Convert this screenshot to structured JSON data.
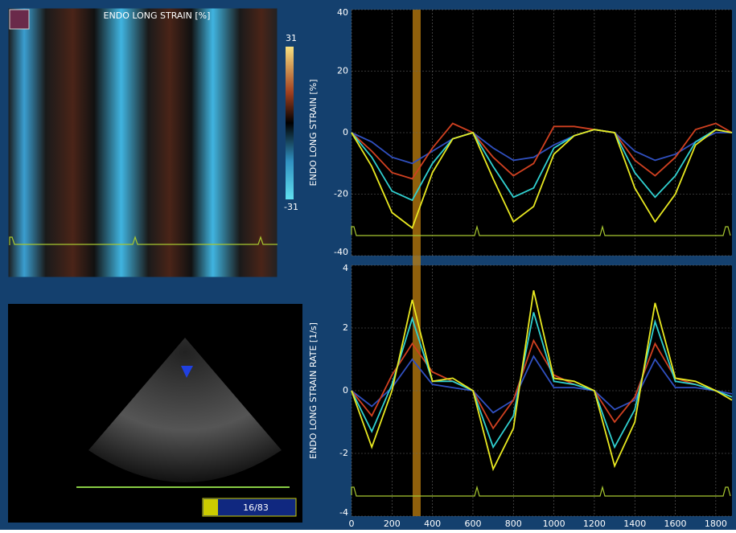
{
  "chart_data": [
    {
      "type": "heatmap",
      "title": "ENDO LONG STRAIN [%]",
      "clim": [
        -31,
        31
      ],
      "colorbar_ticks": [
        31,
        -31
      ]
    },
    {
      "type": "line",
      "ylabel": "ENDO LONG STRAIN [%]",
      "x": [
        0,
        100,
        200,
        300,
        400,
        500,
        600,
        700,
        800,
        900,
        1000,
        1100,
        1200,
        1300,
        1400,
        1500,
        1600,
        1700,
        1800,
        1880
      ],
      "xlim": [
        0,
        1880
      ],
      "ylim": [
        -40,
        40
      ],
      "yticks": [
        -40,
        -20,
        0,
        20,
        40
      ],
      "grid": true,
      "series": [
        {
          "color": "#3050c0",
          "values": [
            0,
            -3,
            -8,
            -10,
            -6,
            -2,
            0,
            -5,
            -9,
            -8,
            -4,
            -1,
            1,
            0,
            -6,
            -9,
            -7,
            -3,
            0,
            0
          ]
        },
        {
          "color": "#d04020",
          "values": [
            0,
            -6,
            -13,
            -15,
            -5,
            3,
            0,
            -8,
            -14,
            -10,
            2,
            2,
            1,
            0,
            -9,
            -14,
            -8,
            1,
            3,
            0
          ]
        },
        {
          "color": "#30d0d0",
          "values": [
            0,
            -8,
            -19,
            -22,
            -10,
            -2,
            0,
            -11,
            -21,
            -18,
            -5,
            -1,
            1,
            0,
            -13,
            -21,
            -14,
            -3,
            1,
            0
          ]
        },
        {
          "color": "#e8e820",
          "values": [
            0,
            -11,
            -26,
            -31,
            -13,
            -2,
            0,
            -15,
            -29,
            -24,
            -7,
            -1,
            1,
            0,
            -18,
            -29,
            -20,
            -4,
            1,
            0
          ]
        }
      ]
    },
    {
      "type": "line",
      "ylabel": "ENDO LONG STRAIN RATE [1/s]",
      "x": [
        0,
        100,
        200,
        300,
        400,
        500,
        600,
        700,
        800,
        900,
        1000,
        1100,
        1200,
        1300,
        1400,
        1500,
        1600,
        1700,
        1800,
        1880
      ],
      "xlim": [
        0,
        1880
      ],
      "xticks": [
        0,
        200,
        400,
        600,
        800,
        1000,
        1200,
        1400,
        1600,
        1800
      ],
      "ylim": [
        -4,
        4
      ],
      "yticks": [
        -4,
        -2,
        0,
        2,
        4
      ],
      "grid": true,
      "series": [
        {
          "color": "#3050c0",
          "values": [
            0,
            -0.5,
            0.1,
            1,
            0.2,
            0.1,
            0,
            -0.7,
            -0.3,
            1.1,
            0.1,
            0.1,
            0,
            -0.6,
            -0.3,
            1,
            0.1,
            0.1,
            0,
            -0.1
          ]
        },
        {
          "color": "#d04020",
          "values": [
            0,
            -0.8,
            0.5,
            1.5,
            0.6,
            0.3,
            0,
            -1.2,
            -0.3,
            1.6,
            0.5,
            0.2,
            0,
            -1,
            -0.2,
            1.5,
            0.4,
            0.2,
            0,
            -0.2
          ]
        },
        {
          "color": "#30d0d0",
          "values": [
            0,
            -1.3,
            0.2,
            2.3,
            0.3,
            0.3,
            0,
            -1.8,
            -0.8,
            2.5,
            0.3,
            0.2,
            0,
            -1.8,
            -0.6,
            2.2,
            0.3,
            0.2,
            0,
            -0.2
          ]
        },
        {
          "color": "#e8e820",
          "values": [
            0,
            -1.8,
            0,
            2.9,
            0.3,
            0.4,
            0,
            -2.5,
            -1.2,
            3.2,
            0.4,
            0.3,
            0,
            -2.4,
            -1,
            2.8,
            0.4,
            0.3,
            0,
            -0.3
          ]
        }
      ]
    }
  ],
  "echo_label": "16/83"
}
